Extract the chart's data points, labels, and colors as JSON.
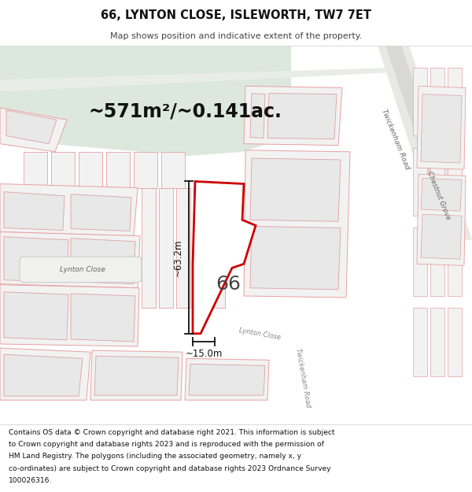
{
  "title": "66, LYNTON CLOSE, ISLEWORTH, TW7 7ET",
  "subtitle": "Map shows position and indicative extent of the property.",
  "area_label": "~571m²/~0.141ac.",
  "width_label": "~15.0m",
  "height_label": "~63.2m",
  "number_label": "66",
  "footer_lines": [
    "Contains OS data © Crown copyright and database right 2021. This information is subject",
    "to Crown copyright and database rights 2023 and is reproduced with the permission of",
    "HM Land Registry. The polygons (including the associated geometry, namely x, y",
    "co-ordinates) are subject to Crown copyright and database rights 2023 Ordnance Survey",
    "100026316."
  ],
  "map_bg": "#f7f7f5",
  "green_bg": "#dde8dd",
  "road_gray": "#e8e8e4",
  "lot_fill": "#f2f2f2",
  "lot_edge": "#e8a0a0",
  "lot_inner_fill": "#e8e8e8",
  "lot_inner_edge": "#e0a0a0",
  "highlight_edge": "#cc0000",
  "highlight_fill": "#ffffff",
  "dim_color": "#111111",
  "road_label_color": "#888888",
  "number_color": "#333333",
  "twickenham_road_fill": "#efefef"
}
